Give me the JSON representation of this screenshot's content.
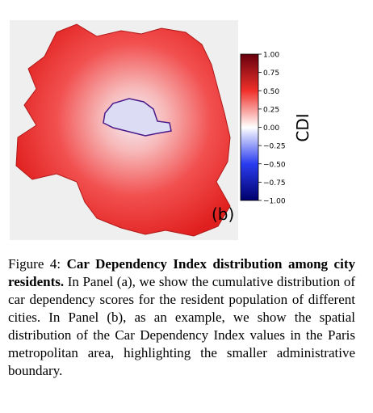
{
  "figure": {
    "panel_label": "(b)",
    "colorbar": {
      "label": "CDI",
      "clim": [
        -1,
        1
      ],
      "ticks": [
        {
          "value": 1,
          "label": "1.00"
        },
        {
          "value": 0.75,
          "label": "0.75"
        },
        {
          "value": 0.5,
          "label": "0.50"
        },
        {
          "value": 0.25,
          "label": "0.25"
        },
        {
          "value": 0,
          "label": "0.00"
        },
        {
          "value": -0.25,
          "label": "−0.25"
        },
        {
          "value": -0.5,
          "label": "−0.50"
        },
        {
          "value": -0.75,
          "label": "−0.75"
        },
        {
          "value": -1,
          "label": "−1.00"
        }
      ]
    }
  },
  "caption": {
    "label": "Figure 4:",
    "bold": "Car Dependency Index distribution among city residents.",
    "text": "In Panel (a), we show the cumulative distribution of car dependency scores for the resident population of different cities. In Panel (b), as an example, we show the spatial distribution of the Car Dependency Index values in the Paris metropolitan area, highlighting the smaller administrative boundary."
  }
}
